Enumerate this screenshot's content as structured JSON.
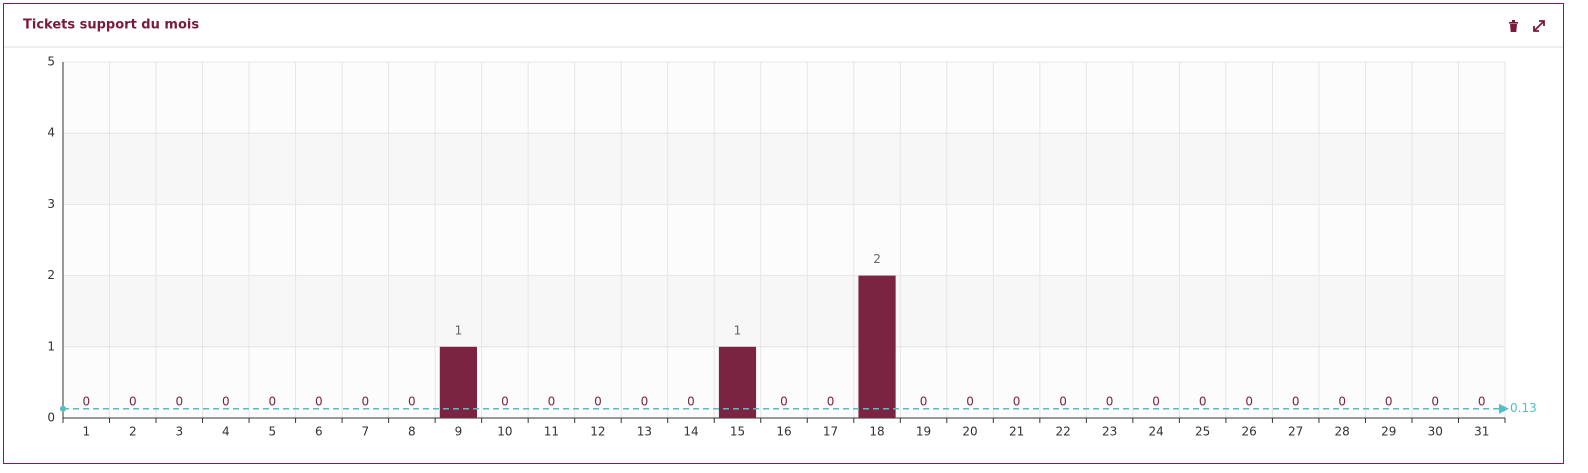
{
  "chart_data": {
    "type": "bar",
    "title": "Tickets support du mois",
    "categories": [
      "1",
      "2",
      "3",
      "4",
      "5",
      "6",
      "7",
      "8",
      "9",
      "10",
      "11",
      "12",
      "13",
      "14",
      "15",
      "16",
      "17",
      "18",
      "19",
      "20",
      "21",
      "22",
      "23",
      "24",
      "25",
      "26",
      "27",
      "28",
      "29",
      "30",
      "31"
    ],
    "values": [
      0,
      0,
      0,
      0,
      0,
      0,
      0,
      0,
      1,
      0,
      0,
      0,
      0,
      0,
      1,
      0,
      0,
      2,
      0,
      0,
      0,
      0,
      0,
      0,
      0,
      0,
      0,
      0,
      0,
      0,
      0
    ],
    "color": "#7b2441",
    "ylim": [
      0,
      5
    ],
    "yticks": [
      0,
      1,
      2,
      3,
      4,
      5
    ],
    "grid": true,
    "average": 0.13,
    "average_color": "#4fc1c4"
  }
}
